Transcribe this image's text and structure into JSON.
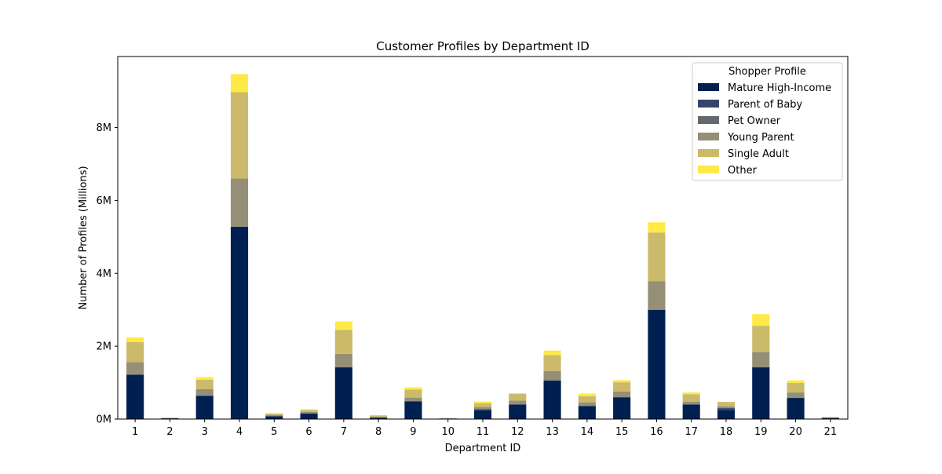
{
  "chart_data": {
    "type": "bar",
    "stacked": true,
    "title": "Customer Profiles by Department ID",
    "xlabel": "Department ID",
    "ylabel": "Number of Profiles (Millions)",
    "categories": [
      "1",
      "2",
      "3",
      "4",
      "5",
      "6",
      "7",
      "8",
      "9",
      "10",
      "11",
      "12",
      "13",
      "14",
      "15",
      "16",
      "17",
      "18",
      "19",
      "20",
      "21"
    ],
    "ylim": [
      0,
      9.95
    ],
    "yticks": [
      0,
      2,
      4,
      6,
      8
    ],
    "ytick_labels": [
      "0M",
      "2M",
      "4M",
      "6M",
      "8M"
    ],
    "legend": {
      "title": "Shopper Profile",
      "placement": "top-right"
    },
    "series": [
      {
        "name": "Mature High-Income",
        "color": "#002051",
        "values": [
          1.22,
          0.02,
          0.64,
          5.28,
          0.08,
          0.15,
          1.42,
          0.04,
          0.49,
          0.015,
          0.24,
          0.4,
          1.06,
          0.36,
          0.6,
          3.0,
          0.4,
          0.25,
          1.42,
          0.58,
          0.03
        ]
      },
      {
        "name": "Parent of Baby",
        "color": "#35456c",
        "values": [
          0.0,
          0.0,
          0.0,
          0.0,
          0.0,
          0.0,
          0.0,
          0.0,
          0.0,
          0.0,
          0.03,
          0.0,
          0.0,
          0.0,
          0.0,
          0.0,
          0.0,
          0.05,
          0.0,
          0.0,
          0.0
        ]
      },
      {
        "name": "Pet Owner",
        "color": "#666870",
        "values": [
          0.0,
          0.0,
          0.0,
          0.0,
          0.0,
          0.0,
          0.0,
          0.0,
          0.0,
          0.0,
          0.0,
          0.0,
          0.0,
          0.0,
          0.0,
          0.0,
          0.0,
          0.0,
          0.0,
          0.0,
          0.0
        ]
      },
      {
        "name": "Young Parent",
        "color": "#958f78",
        "values": [
          0.34,
          0.005,
          0.18,
          1.32,
          0.03,
          0.05,
          0.37,
          0.02,
          0.1,
          0.005,
          0.06,
          0.11,
          0.26,
          0.1,
          0.16,
          0.78,
          0.08,
          0.05,
          0.42,
          0.15,
          0.01
        ]
      },
      {
        "name": "Single Adult",
        "color": "#cbba69",
        "values": [
          0.55,
          0.015,
          0.26,
          2.37,
          0.04,
          0.05,
          0.66,
          0.04,
          0.22,
          0.01,
          0.1,
          0.18,
          0.44,
          0.17,
          0.25,
          1.34,
          0.2,
          0.12,
          0.72,
          0.26,
          0.015
        ]
      },
      {
        "name": "Other",
        "color": "#ffe945",
        "values": [
          0.13,
          0.005,
          0.07,
          0.5,
          0.01,
          0.02,
          0.23,
          0.01,
          0.06,
          0.0,
          0.05,
          0.02,
          0.12,
          0.07,
          0.06,
          0.28,
          0.05,
          0.0,
          0.32,
          0.07,
          0.005
        ]
      }
    ]
  }
}
